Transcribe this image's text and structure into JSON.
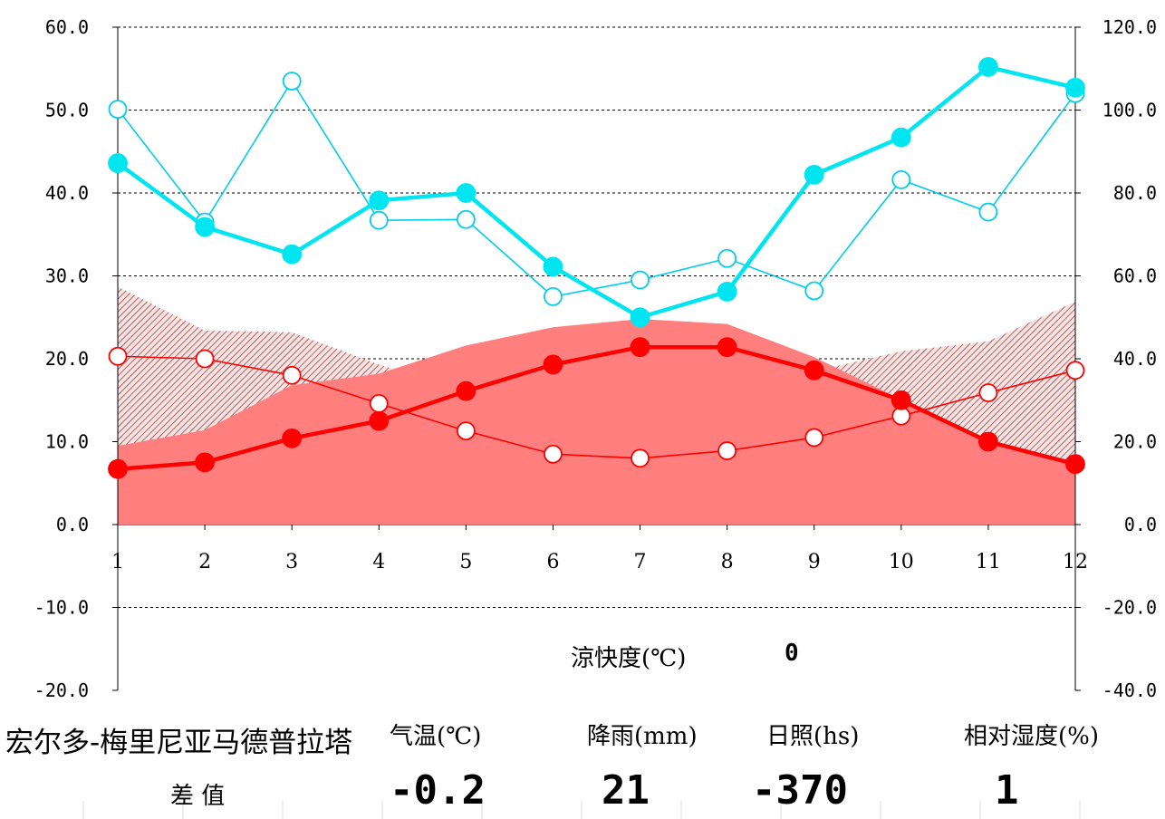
{
  "chart_data": {
    "type": "line",
    "x": [
      1,
      2,
      3,
      4,
      5,
      6,
      7,
      8,
      9,
      10,
      11,
      12
    ],
    "y_left": {
      "range": [
        -20,
        60
      ],
      "ticks": [
        "60.0",
        "50.0",
        "40.0",
        "30.0",
        "20.0",
        "10.0",
        "0.0",
        "-10.0",
        "-20.0"
      ]
    },
    "y_right": {
      "range": [
        -40,
        120
      ],
      "ticks": [
        "120.0",
        "100.0",
        "80.0",
        "60.0",
        "40.0",
        "20.0",
        "0.0",
        "-20.0",
        "-40.0"
      ]
    },
    "x_ticks": [
      "1",
      "2",
      "3",
      "4",
      "5",
      "6",
      "7",
      "8",
      "9",
      "10",
      "11",
      "12"
    ],
    "grid": true,
    "area_solid": [
      9.5,
      11.4,
      16.8,
      18.2,
      21.6,
      23.8,
      24.8,
      24.2,
      20.2,
      15.1,
      9.8,
      7.4
    ],
    "area_hatched": [
      28.7,
      23.4,
      23.2,
      19.3,
      16.0,
      13.5,
      14.5,
      15.2,
      18.5,
      20.9,
      22.1,
      26.9
    ],
    "series": [
      {
        "axis": "left",
        "color": "#ff0000",
        "style": "filled",
        "values": [
          6.7,
          7.5,
          10.4,
          12.5,
          16.1,
          19.3,
          21.4,
          21.4,
          18.6,
          15.0,
          10.0,
          7.3
        ]
      },
      {
        "axis": "left",
        "color": "#ff0000",
        "style": "open",
        "values": [
          20.3,
          20.0,
          18.0,
          14.6,
          11.3,
          8.5,
          8.0,
          8.9,
          10.5,
          13.1,
          15.9,
          18.6
        ]
      },
      {
        "axis": "right",
        "color": "#00e5f0",
        "style": "filled",
        "values": [
          87.2,
          71.8,
          65.2,
          78.2,
          80.0,
          62.2,
          50.0,
          56.2,
          84.4,
          93.4,
          110.4,
          105.4
        ]
      },
      {
        "axis": "right",
        "color": "#00ccee",
        "style": "open",
        "values": [
          100.2,
          73.0,
          107.0,
          73.4,
          73.6,
          55.0,
          59.0,
          64.2,
          56.4,
          83.2,
          75.4,
          104.0
        ]
      }
    ],
    "colors": {
      "solid_area": "#ff7f7f",
      "hatch": "#a52a2a"
    }
  },
  "annotation": {
    "label": "涼快度(℃)",
    "value": "0"
  },
  "footer": {
    "station": "宏尔多-梅里尼亚马德普拉塔",
    "headers": [
      "气温(℃)",
      "降雨(mm)",
      "日照(hs)",
      "相对湿度(%)"
    ],
    "row_label": "差 值",
    "values": [
      "-0.2",
      "21",
      "-370",
      "1"
    ]
  }
}
